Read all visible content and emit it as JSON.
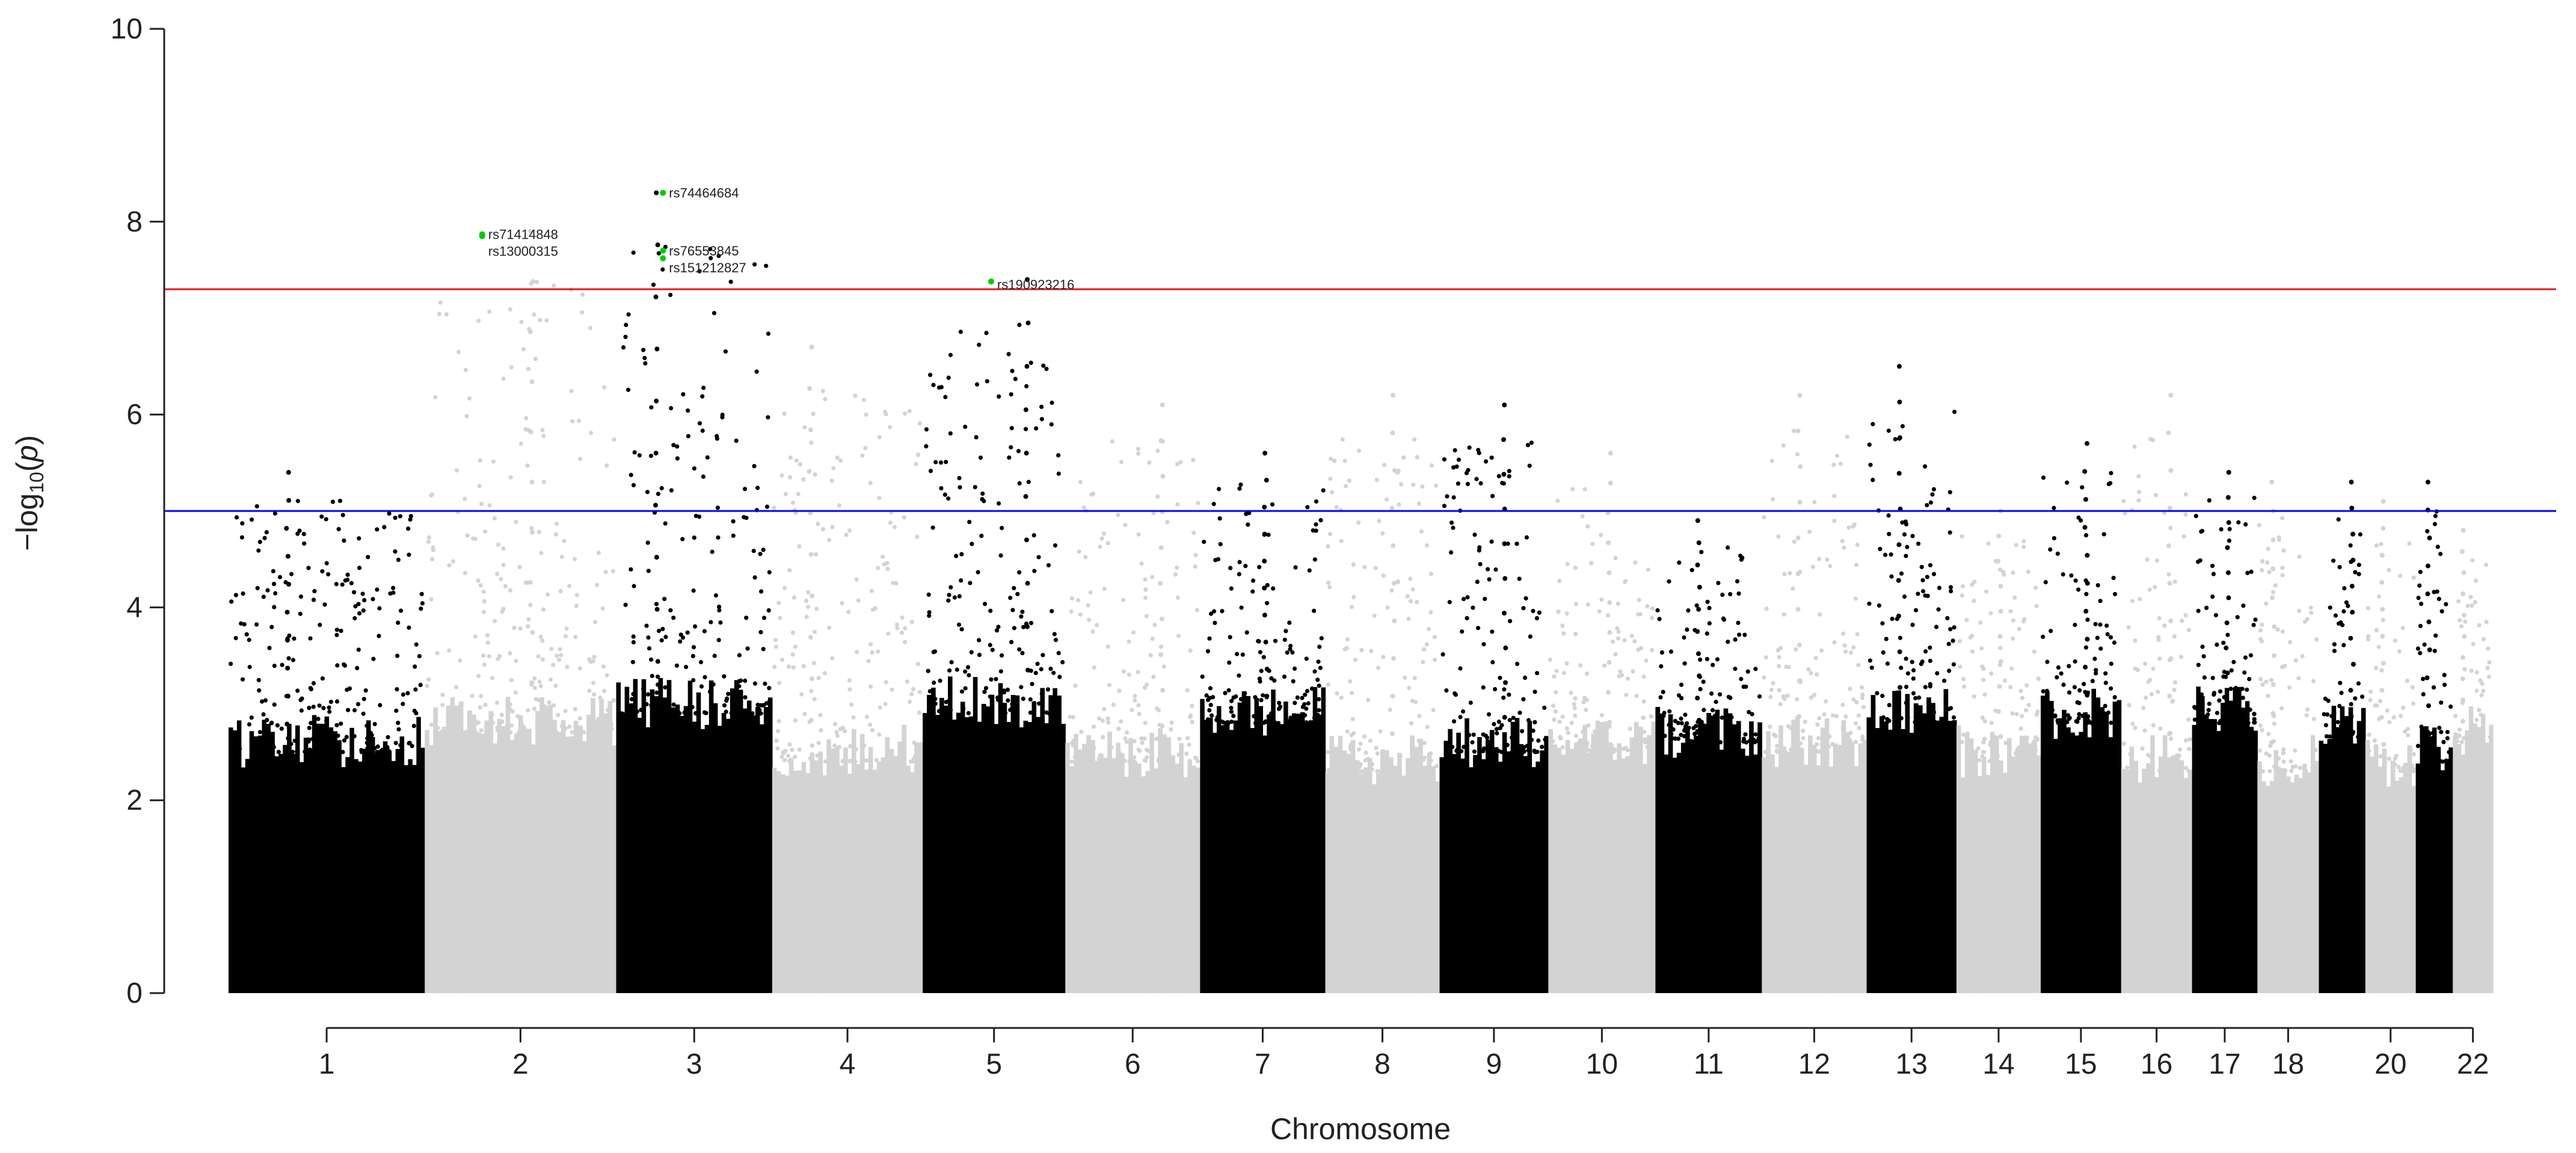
{
  "chart_data": {
    "type": "scatter",
    "subtype": "manhattan",
    "title": "",
    "xlabel": "Chromosome",
    "ylabel": {
      "prefix": "−log",
      "sub": "10",
      "open": "(",
      "var": "p",
      "close": ")"
    },
    "ylim": [
      0,
      10
    ],
    "yticks": [
      0,
      2,
      4,
      6,
      8,
      10
    ],
    "grid": false,
    "thresholds": [
      {
        "name": "genome-wide-significance",
        "value": 7.3,
        "color": "#e41a1c"
      },
      {
        "name": "suggestive",
        "value": 5.0,
        "color": "#0000ff"
      }
    ],
    "colors": {
      "odd": "#000000",
      "even": "#d3d3d3",
      "highlight": "#00cc00"
    },
    "chromosomes": [
      {
        "chr": "1",
        "length": 249,
        "baseline": 2.5,
        "max": 5.4
      },
      {
        "chr": "2",
        "length": 243,
        "baseline": 2.7,
        "max": 7.9
      },
      {
        "chr": "3",
        "length": 198,
        "baseline": 2.9,
        "max": 8.3
      },
      {
        "chr": "4",
        "length": 191,
        "baseline": 2.4,
        "max": 6.7
      },
      {
        "chr": "5",
        "length": 181,
        "baseline": 2.9,
        "max": 7.4
      },
      {
        "chr": "6",
        "length": 171,
        "baseline": 2.4,
        "max": 6.1
      },
      {
        "chr": "7",
        "length": 159,
        "baseline": 2.8,
        "max": 5.6
      },
      {
        "chr": "8",
        "length": 145,
        "baseline": 2.3,
        "max": 6.2
      },
      {
        "chr": "9",
        "length": 138,
        "baseline": 2.5,
        "max": 6.1
      },
      {
        "chr": "10",
        "length": 136,
        "baseline": 2.5,
        "max": 5.6
      },
      {
        "chr": "11",
        "length": 135,
        "baseline": 2.6,
        "max": 4.9
      },
      {
        "chr": "12",
        "length": 133,
        "baseline": 2.5,
        "max": 6.2
      },
      {
        "chr": "13",
        "length": 114,
        "baseline": 2.8,
        "max": 6.5
      },
      {
        "chr": "14",
        "length": 107,
        "baseline": 2.4,
        "max": 5.0
      },
      {
        "chr": "15",
        "length": 102,
        "baseline": 2.8,
        "max": 5.7
      },
      {
        "chr": "16",
        "length": 90,
        "baseline": 2.3,
        "max": 6.2
      },
      {
        "chr": "17",
        "length": 83,
        "baseline": 2.8,
        "max": 5.4
      },
      {
        "chr": "18",
        "length": 78,
        "baseline": 2.3,
        "max": 5.3
      },
      {
        "chr": "19",
        "length": 59,
        "baseline": 2.6,
        "max": 5.3
      },
      {
        "chr": "20",
        "length": 64,
        "baseline": 2.3,
        "max": 5.1
      },
      {
        "chr": "21",
        "length": 47,
        "baseline": 2.4,
        "max": 5.3
      },
      {
        "chr": "22",
        "length": 51,
        "baseline": 2.6,
        "max": 4.8
      }
    ],
    "tick_labels": [
      "1",
      "2",
      "3",
      "4",
      "5",
      "6",
      "7",
      "8",
      "9",
      "10",
      "11",
      "12",
      "13",
      "14",
      "15",
      "16",
      "17",
      "18",
      "20",
      "22"
    ],
    "highlighted_snps": [
      {
        "id": "rs71414848",
        "chr": "2",
        "pos": 0.3,
        "value": 7.87
      },
      {
        "id": "rs13000315",
        "chr": "2",
        "pos": 0.3,
        "value": 7.85
      },
      {
        "id": "rs74464684",
        "chr": "3",
        "pos": 0.3,
        "value": 8.3
      },
      {
        "id": "rs76553845",
        "chr": "3",
        "pos": 0.3,
        "value": 7.7
      },
      {
        "id": "rs151212827",
        "chr": "3",
        "pos": 0.3,
        "value": 7.62
      },
      {
        "id": "rs190923216",
        "chr": "5",
        "pos": 0.48,
        "value": 7.38
      }
    ]
  }
}
